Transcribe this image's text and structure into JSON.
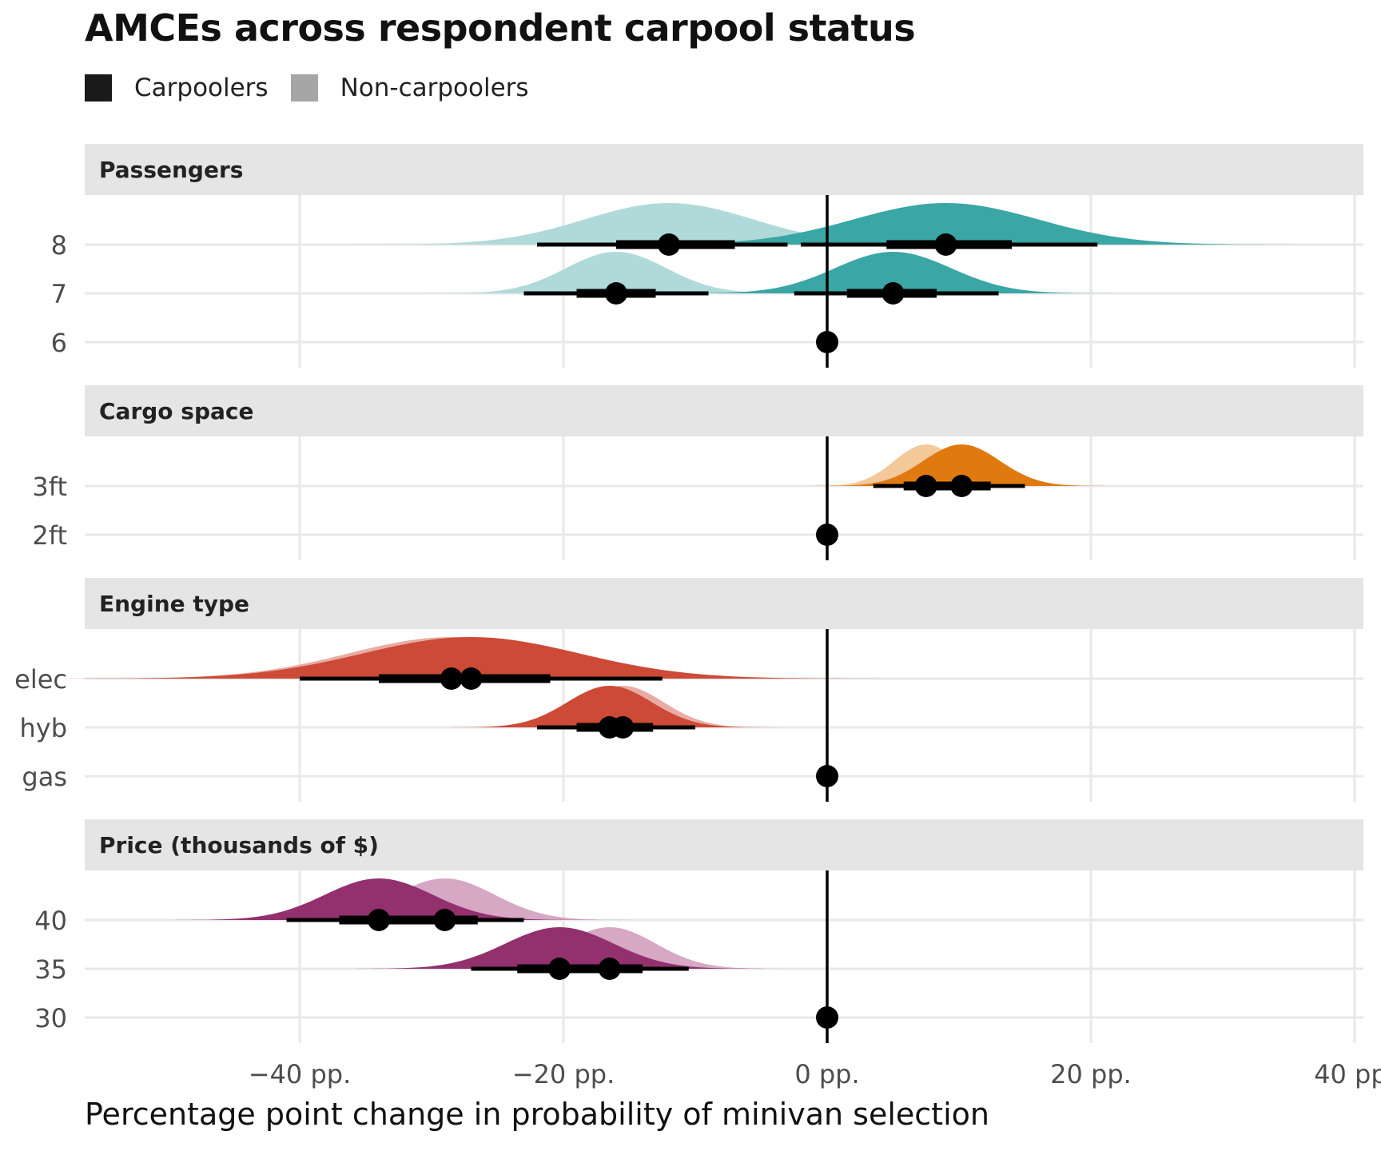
{
  "chart_data": {
    "type": "halfeye",
    "title": "AMCEs across respondent carpool status",
    "xlabel": "Percentage point change in probability of minivan selection",
    "xlim": [
      -60,
      40
    ],
    "x_ticks": [
      -40,
      -20,
      0,
      20,
      40
    ],
    "x_tick_labels": [
      "−40 pp.",
      "−20 pp.",
      "0 pp.",
      "20 pp.",
      "40 pp."
    ],
    "legend": [
      {
        "name": "Carpoolers",
        "color": "#1a1a1a"
      },
      {
        "name": "Non-carpoolers",
        "color": "#a6a6a6"
      }
    ],
    "facets": [
      {
        "name": "Passengers",
        "levels": [
          "8",
          "7",
          "6"
        ],
        "color": "#3aa6a5",
        "light_color": "#b0dad9",
        "reference": "6",
        "estimates": [
          {
            "level": "8",
            "group": "Non-carpoolers",
            "median": -12,
            "ci66": [
              -16,
              -7
            ],
            "ci95": [
              -22,
              -3
            ],
            "sd": 6.4
          },
          {
            "level": "8",
            "group": "Carpoolers",
            "median": 9,
            "ci66": [
              4.5,
              14
            ],
            "ci95": [
              -2,
              20.5
            ],
            "sd": 7.0
          },
          {
            "level": "7",
            "group": "Non-carpoolers",
            "median": -16,
            "ci66": [
              -19,
              -13
            ],
            "ci95": [
              -23,
              -9
            ],
            "sd": 3.8
          },
          {
            "level": "7",
            "group": "Carpoolers",
            "median": 5,
            "ci66": [
              1.5,
              8.3
            ],
            "ci95": [
              -2.5,
              13
            ],
            "sd": 4.4
          }
        ]
      },
      {
        "name": "Cargo space",
        "levels": [
          "3ft",
          "2ft"
        ],
        "color": "#e07a10",
        "light_color": "#f3c99a",
        "reference": "2ft",
        "estimates": [
          {
            "level": "3ft",
            "group": "Non-carpoolers",
            "median": 7.5,
            "ci66": [
              5.8,
              9.3
            ],
            "ci95": [
              3.5,
              11.5
            ],
            "sd": 2.4
          },
          {
            "level": "3ft",
            "group": "Carpoolers",
            "median": 10.2,
            "ci66": [
              7.8,
              12.4
            ],
            "ci95": [
              5.5,
              15
            ],
            "sd": 2.9
          }
        ]
      },
      {
        "name": "Engine type",
        "levels": [
          "elec",
          "hyb",
          "gas"
        ],
        "color": "#cc4a36",
        "light_color": "#e8aca2",
        "reference": "gas",
        "estimates": [
          {
            "level": "elec",
            "group": "Non-carpoolers",
            "median": -28.5,
            "ci66": [
              -33,
              -23.5
            ],
            "ci95": [
              -39.5,
              -15
            ],
            "sd": 7.8
          },
          {
            "level": "elec",
            "group": "Carpoolers",
            "median": -27,
            "ci66": [
              -34,
              -21
            ],
            "ci95": [
              -40,
              -12.5
            ],
            "sd": 8.2
          },
          {
            "level": "hyb",
            "group": "Non-carpoolers",
            "median": -15.5,
            "ci66": [
              -18.5,
              -13.2
            ],
            "ci95": [
              -21,
              -10.5
            ],
            "sd": 3.1
          },
          {
            "level": "hyb",
            "group": "Carpoolers",
            "median": -16.5,
            "ci66": [
              -19,
              -13.5
            ],
            "ci95": [
              -22,
              -10
            ],
            "sd": 3.2
          }
        ]
      },
      {
        "name": "Price (thousands of $)",
        "levels": [
          "40",
          "35",
          "30"
        ],
        "color": "#93306e",
        "light_color": "#d6a8c4",
        "reference": "30",
        "estimates": [
          {
            "level": "40",
            "group": "Non-carpoolers",
            "median": -29,
            "ci66": [
              -32,
              -26.5
            ],
            "ci95": [
              -36,
              -23
            ],
            "sd": 3.8
          },
          {
            "level": "40",
            "group": "Carpoolers",
            "median": -34,
            "ci66": [
              -37,
              -30
            ],
            "ci95": [
              -41,
              -27
            ],
            "sd": 4.1
          },
          {
            "level": "35",
            "group": "Non-carpoolers",
            "median": -16.5,
            "ci66": [
              -19.5,
              -14
            ],
            "ci95": [
              -23,
              -10.5
            ],
            "sd": 3.5
          },
          {
            "level": "35",
            "group": "Carpoolers",
            "median": -20.3,
            "ci66": [
              -23.5,
              -16.8
            ],
            "ci95": [
              -27,
              -13.5
            ],
            "sd": 4.1
          }
        ]
      }
    ]
  }
}
